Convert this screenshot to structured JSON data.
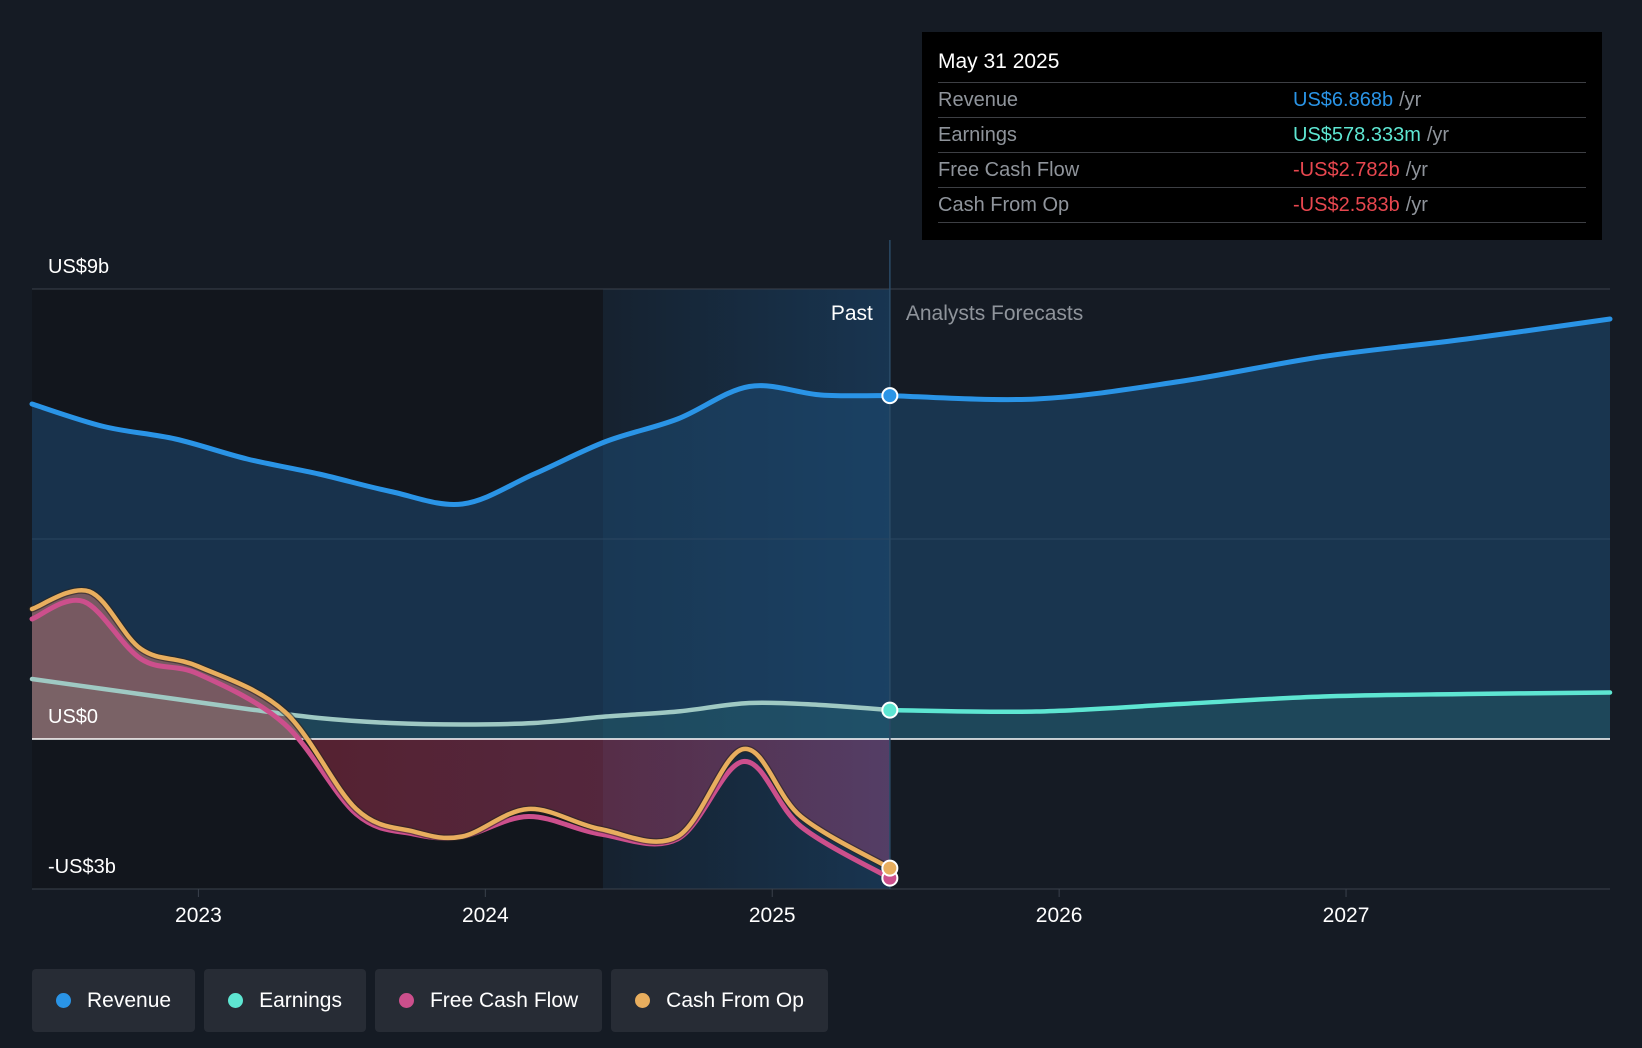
{
  "tooltip": {
    "date": "May 31 2025",
    "unit": "/yr",
    "rows": [
      {
        "label": "Revenue",
        "value": "US$6.868b",
        "color": "#2a94e6"
      },
      {
        "label": "Earnings",
        "value": "US$578.333m",
        "color": "#5ee6d2"
      },
      {
        "label": "Free Cash Flow",
        "value": "-US$2.782b",
        "color": "#e8474f"
      },
      {
        "label": "Cash From Op",
        "value": "-US$2.583b",
        "color": "#e8474f"
      }
    ]
  },
  "legend": [
    {
      "label": "Revenue",
      "color": "#2a94e6"
    },
    {
      "label": "Earnings",
      "color": "#5ee6d2"
    },
    {
      "label": "Free Cash Flow",
      "color": "#cc4f8c"
    },
    {
      "label": "Cash From Op",
      "color": "#e8ae5e"
    }
  ],
  "chart_data": {
    "type": "line",
    "x_axis": {
      "ticks": [
        2023,
        2024,
        2025,
        2026,
        2027
      ],
      "tick_labels": [
        "2023",
        "2024",
        "2025",
        "2026",
        "2027"
      ],
      "range": [
        2022.42,
        2027.92
      ]
    },
    "y_axis": {
      "range": [
        -3,
        9
      ],
      "labels": [
        {
          "value": 9,
          "text": "US$9b"
        },
        {
          "value": 0,
          "text": "US$0"
        },
        {
          "value": -3,
          "text": "-US$3b"
        }
      ],
      "gridlines": [
        9,
        4
      ]
    },
    "past_label": "Past",
    "forecast_label": "Analysts Forecasts",
    "divider_x": 2025.41,
    "highlight_start_x": 2024.41,
    "series": [
      {
        "name": "Revenue",
        "color": "#2a94e6",
        "past": [
          [
            2022.42,
            6.7
          ],
          [
            2022.67,
            6.25
          ],
          [
            2022.92,
            6.0
          ],
          [
            2023.17,
            5.6
          ],
          [
            2023.42,
            5.3
          ],
          [
            2023.67,
            4.95
          ],
          [
            2023.92,
            4.7
          ],
          [
            2024.17,
            5.3
          ],
          [
            2024.42,
            5.95
          ],
          [
            2024.67,
            6.4
          ],
          [
            2024.92,
            7.05
          ],
          [
            2025.17,
            6.88
          ],
          [
            2025.41,
            6.868
          ]
        ],
        "forecast": [
          [
            2025.41,
            6.868
          ],
          [
            2025.92,
            6.8
          ],
          [
            2026.42,
            7.15
          ],
          [
            2026.92,
            7.65
          ],
          [
            2027.42,
            8.0
          ],
          [
            2027.92,
            8.4
          ]
        ],
        "marker": {
          "x": 2025.41,
          "y": 6.868
        }
      },
      {
        "name": "Earnings",
        "color": "#5ee6d2",
        "past": [
          [
            2022.42,
            1.2
          ],
          [
            2022.67,
            1.0
          ],
          [
            2022.92,
            0.8
          ],
          [
            2023.17,
            0.6
          ],
          [
            2023.42,
            0.42
          ],
          [
            2023.67,
            0.32
          ],
          [
            2023.92,
            0.29
          ],
          [
            2024.17,
            0.32
          ],
          [
            2024.42,
            0.45
          ],
          [
            2024.67,
            0.55
          ],
          [
            2024.92,
            0.72
          ],
          [
            2025.17,
            0.68
          ],
          [
            2025.41,
            0.578
          ]
        ],
        "forecast": [
          [
            2025.41,
            0.578
          ],
          [
            2025.92,
            0.55
          ],
          [
            2026.42,
            0.7
          ],
          [
            2026.92,
            0.85
          ],
          [
            2027.42,
            0.9
          ],
          [
            2027.92,
            0.93
          ]
        ],
        "marker": {
          "x": 2025.41,
          "y": 0.578
        }
      },
      {
        "name": "Free Cash Flow",
        "color": "#cc4f8c",
        "past": [
          [
            2022.42,
            2.4
          ],
          [
            2022.6,
            2.75
          ],
          [
            2022.8,
            1.6
          ],
          [
            2023.0,
            1.3
          ],
          [
            2023.3,
            0.3
          ],
          [
            2023.55,
            -1.5
          ],
          [
            2023.75,
            -1.9
          ],
          [
            2023.92,
            -1.95
          ],
          [
            2024.15,
            -1.55
          ],
          [
            2024.4,
            -1.9
          ],
          [
            2024.67,
            -2.0
          ],
          [
            2024.9,
            -0.45
          ],
          [
            2025.1,
            -1.75
          ],
          [
            2025.41,
            -2.782
          ]
        ],
        "marker": {
          "x": 2025.41,
          "y": -2.782
        }
      },
      {
        "name": "Cash From Op",
        "color": "#e8ae5e",
        "past": [
          [
            2022.42,
            2.6
          ],
          [
            2022.62,
            2.95
          ],
          [
            2022.8,
            1.8
          ],
          [
            2023.0,
            1.45
          ],
          [
            2023.3,
            0.55
          ],
          [
            2023.55,
            -1.4
          ],
          [
            2023.75,
            -1.85
          ],
          [
            2023.92,
            -1.95
          ],
          [
            2024.15,
            -1.4
          ],
          [
            2024.4,
            -1.8
          ],
          [
            2024.67,
            -1.95
          ],
          [
            2024.9,
            -0.2
          ],
          [
            2025.1,
            -1.55
          ],
          [
            2025.41,
            -2.583
          ]
        ],
        "marker": {
          "x": 2025.41,
          "y": -2.583
        }
      }
    ]
  }
}
